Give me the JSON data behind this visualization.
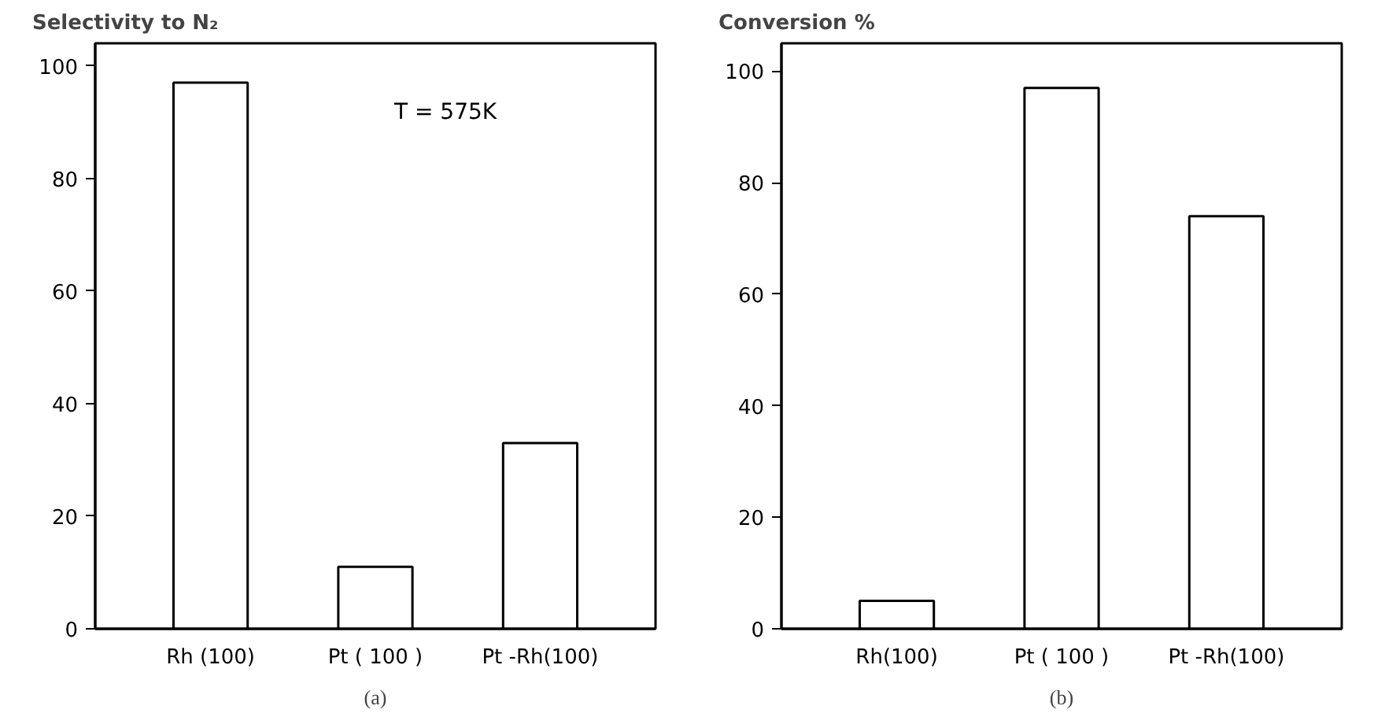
{
  "chart_data": [
    {
      "type": "bar",
      "ylabel": "Selectivity to N₂",
      "categories": [
        "Rh (100)",
        "Pt ( 100 )",
        "Pt -Rh(100)"
      ],
      "values": [
        97,
        11,
        33
      ],
      "color": "#ffffff",
      "ylim": [
        0,
        104
      ],
      "yticks": [
        0,
        20,
        40,
        60,
        80,
        100
      ],
      "grid": false,
      "annotations": [
        "T = 575K",
        "(a)"
      ]
    },
    {
      "type": "bar",
      "ylabel": "Conversion  %",
      "categories": [
        "Rh(100)",
        "Pt ( 100 )",
        "Pt -Rh(100)"
      ],
      "values": [
        5,
        97,
        74
      ],
      "color": "#ffffff",
      "ylim": [
        0,
        105
      ],
      "yticks": [
        0,
        20,
        40,
        60,
        80,
        100
      ],
      "grid": false,
      "annotations": [
        "(b)"
      ]
    }
  ]
}
